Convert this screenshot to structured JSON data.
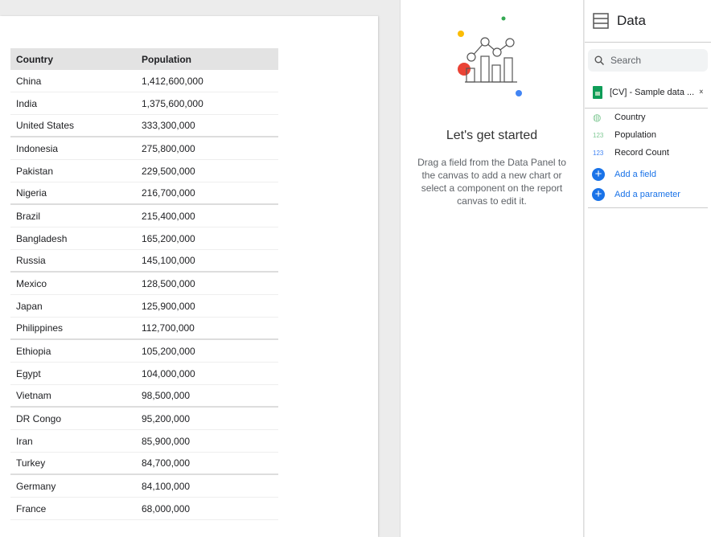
{
  "table": {
    "headers": [
      "Country",
      "Population"
    ],
    "rows": [
      [
        "China",
        "1,412,600,000"
      ],
      [
        "India",
        "1,375,600,000"
      ],
      [
        "United States",
        "333,300,000"
      ],
      [
        "Indonesia",
        "275,800,000"
      ],
      [
        "Pakistan",
        "229,500,000"
      ],
      [
        "Nigeria",
        "216,700,000"
      ],
      [
        "Brazil",
        "215,400,000"
      ],
      [
        "Bangladesh",
        "165,200,000"
      ],
      [
        "Russia",
        "145,100,000"
      ],
      [
        "Mexico",
        "128,500,000"
      ],
      [
        "Japan",
        "125,900,000"
      ],
      [
        "Philippines",
        "112,700,000"
      ],
      [
        "Ethiopia",
        "105,200,000"
      ],
      [
        "Egypt",
        "104,000,000"
      ],
      [
        "Vietnam",
        "98,500,000"
      ],
      [
        "DR Congo",
        "95,200,000"
      ],
      [
        "Iran",
        "85,900,000"
      ],
      [
        "Turkey",
        "84,700,000"
      ],
      [
        "Germany",
        "84,100,000"
      ],
      [
        "France",
        "68,000,000"
      ]
    ]
  },
  "empty_state": {
    "title": "Let's get started",
    "body": "Drag a field from the Data Panel to the canvas to add a new chart or select a component on the report canvas to edit it."
  },
  "data_panel": {
    "title": "Data",
    "search_placeholder": "Search",
    "source": "[CV] - Sample data ...",
    "fields": [
      {
        "type": "globe",
        "label": "Country"
      },
      {
        "type": "123",
        "label": "Population"
      },
      {
        "type": "123",
        "label": "Record Count"
      }
    ],
    "add_field": "Add a field",
    "add_parameter": "Add a parameter"
  },
  "colors": {
    "accent": "#1a73e8"
  }
}
